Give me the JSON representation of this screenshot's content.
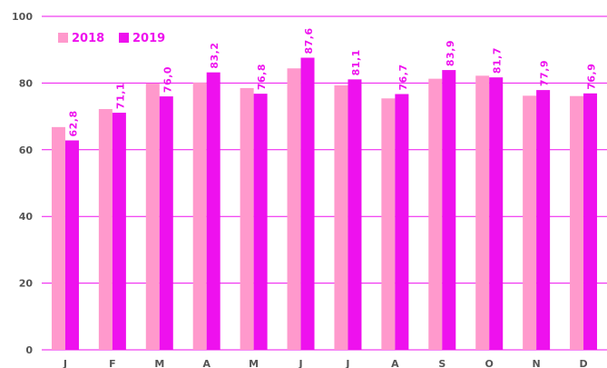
{
  "colors": {
    "series_2018": "#ff99cc",
    "series_2019": "#ee11ee",
    "grid": "#ee11ee",
    "axis_text": "#555555",
    "legend_text": "#ee11ee",
    "data_label": "#ee11ee"
  },
  "chart_data": {
    "type": "bar",
    "categories": [
      "J",
      "F",
      "M",
      "A",
      "M",
      "J",
      "J",
      "A",
      "S",
      "O",
      "N",
      "D"
    ],
    "series": [
      {
        "name": "2018",
        "values": [
          66.8,
          72.2,
          79.9,
          80.1,
          78.5,
          84.4,
          79.3,
          75.4,
          81.3,
          82.2,
          76.2,
          76.1
        ]
      },
      {
        "name": "2019",
        "values": [
          62.8,
          71.1,
          76.0,
          83.2,
          76.8,
          87.6,
          81.1,
          76.7,
          83.9,
          81.7,
          77.9,
          76.9
        ],
        "data_labels": [
          "62,8",
          "71,1",
          "76,0",
          "83,2",
          "76,8",
          "87,6",
          "81,1",
          "76,7",
          "83,9",
          "81,7",
          "77,9",
          "76,9"
        ]
      }
    ],
    "y_ticks": [
      "0",
      "20",
      "40",
      "60",
      "80",
      "100"
    ],
    "ylim": [
      0,
      100
    ],
    "grid": true,
    "legend_position": "top-left"
  }
}
